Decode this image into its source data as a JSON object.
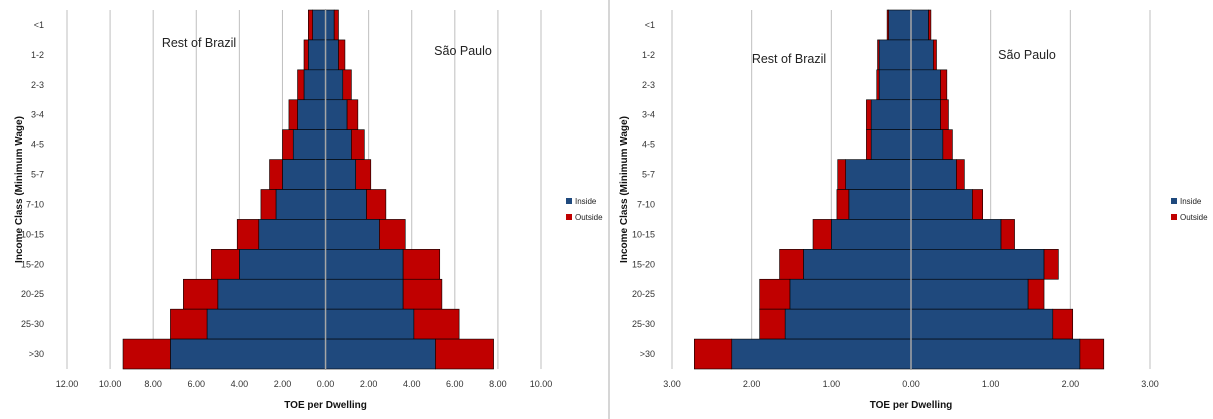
{
  "colors": {
    "inside": "#1f497d",
    "outside": "#c00000",
    "grid": "#bfbfbf",
    "center": "#a6a6a6",
    "bar_edge": "#000000"
  },
  "chart_data": [
    {
      "type": "bar",
      "orientation": "horizontal",
      "layout": "population-pyramid",
      "categories": [
        "<1",
        "1-2",
        "2-3",
        "3-4",
        "4-5",
        "5-7",
        "7-10",
        "10-15",
        "15-20",
        "20-25",
        "25-30",
        ">30"
      ],
      "xlabel": "TOE per Dwelling",
      "ylabel": "Income Class (Minimum Wage)",
      "left_label": "Rest of Brazil",
      "right_label": "São Paulo",
      "xlim": [
        -12,
        10
      ],
      "xtick_values": [
        -12,
        -10,
        -8,
        -6,
        -4,
        -2,
        0,
        2,
        4,
        6,
        8,
        10
      ],
      "xtick_labels": [
        "12.00",
        "10.00",
        "8.00",
        "6.00",
        "4.00",
        "2.00",
        "0.00",
        "2.00",
        "4.00",
        "6.00",
        "8.00",
        "10.00"
      ],
      "legend_position": "right",
      "series": [
        {
          "name": "Inside",
          "side": "Rest of Brazil",
          "values": [
            0.6,
            0.8,
            1.0,
            1.3,
            1.5,
            2.0,
            2.3,
            3.1,
            4.0,
            5.0,
            5.5,
            7.2
          ]
        },
        {
          "name": "Outside",
          "side": "Rest of Brazil",
          "values": [
            0.2,
            0.2,
            0.3,
            0.4,
            0.5,
            0.6,
            0.7,
            1.0,
            1.3,
            1.6,
            1.7,
            2.2
          ]
        },
        {
          "name": "Inside",
          "side": "São Paulo",
          "values": [
            0.4,
            0.6,
            0.8,
            1.0,
            1.2,
            1.4,
            1.9,
            2.5,
            3.6,
            3.6,
            4.1,
            5.1
          ]
        },
        {
          "name": "Outside",
          "side": "São Paulo",
          "values": [
            0.2,
            0.3,
            0.4,
            0.5,
            0.6,
            0.7,
            0.9,
            1.2,
            1.7,
            1.8,
            2.1,
            2.7
          ]
        }
      ]
    },
    {
      "type": "bar",
      "orientation": "horizontal",
      "layout": "population-pyramid",
      "categories": [
        "<1",
        "1-2",
        "2-3",
        "3-4",
        "4-5",
        "5-7",
        "7-10",
        "10-15",
        "15-20",
        "20-25",
        "25-30",
        ">30"
      ],
      "xlabel": "TOE per Dwelling",
      "ylabel": "Income Class (Minimum Wage)",
      "left_label": "Rest of Brazil",
      "right_label": "São Paulo",
      "xlim": [
        -3,
        3
      ],
      "xtick_values": [
        -3,
        -2,
        -1,
        0,
        1,
        2,
        3
      ],
      "xtick_labels": [
        "3.00",
        "2.00",
        "1.00",
        "0.00",
        "1.00",
        "2.00",
        "3.00"
      ],
      "legend_position": "right",
      "series": [
        {
          "name": "Inside",
          "side": "Rest of Brazil",
          "values": [
            0.28,
            0.4,
            0.4,
            0.5,
            0.5,
            0.82,
            0.78,
            1.0,
            1.35,
            1.52,
            1.58,
            2.25
          ]
        },
        {
          "name": "Outside",
          "side": "Rest of Brazil",
          "values": [
            0.02,
            0.02,
            0.03,
            0.06,
            0.06,
            0.1,
            0.15,
            0.23,
            0.3,
            0.38,
            0.32,
            0.47
          ]
        },
        {
          "name": "Inside",
          "side": "São Paulo",
          "values": [
            0.22,
            0.28,
            0.37,
            0.37,
            0.4,
            0.57,
            0.77,
            1.13,
            1.67,
            1.47,
            1.78,
            2.12
          ]
        },
        {
          "name": "Outside",
          "side": "São Paulo",
          "values": [
            0.03,
            0.04,
            0.08,
            0.1,
            0.12,
            0.1,
            0.13,
            0.17,
            0.18,
            0.2,
            0.25,
            0.3
          ]
        }
      ]
    }
  ]
}
